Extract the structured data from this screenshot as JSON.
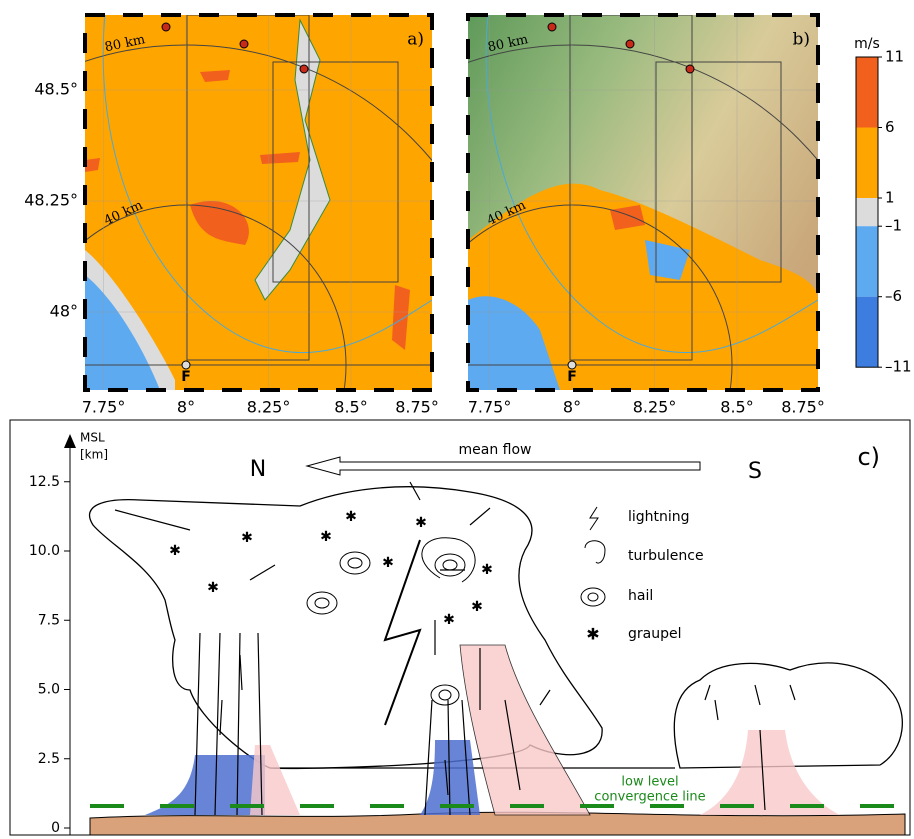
{
  "maps": [
    {
      "label": "a)",
      "ring_labels": [
        "80 km",
        "40 km"
      ],
      "site": "F"
    },
    {
      "label": "b)",
      "ring_labels": [
        "80 km",
        "40 km"
      ],
      "site": "F"
    }
  ],
  "lat_ticks": [
    {
      "value": 48.5,
      "label": "48.5°"
    },
    {
      "value": 48.25,
      "label": "48.25°"
    },
    {
      "value": 48,
      "label": "48°"
    }
  ],
  "lon_ticks": [
    {
      "value": 7.75,
      "label": "7.75°"
    },
    {
      "value": 8,
      "label": "8°"
    },
    {
      "value": 8.25,
      "label": "8.25°"
    },
    {
      "value": 8.5,
      "label": "8.5°"
    },
    {
      "value": 8.75,
      "label": "8.75°"
    }
  ],
  "colorbar": {
    "unit": "m/s",
    "ticks": [
      11,
      6,
      1,
      {
        "value": -1,
        "label": "–1"
      },
      {
        "value": -6,
        "label": "–6"
      },
      {
        "value": -11,
        "label": "–11"
      }
    ],
    "colors": [
      "#f2601e",
      "#ffa500",
      "#dcdcdc",
      "#5eaaf0",
      "#3d7de0"
    ]
  },
  "schematic": {
    "label": "c)",
    "axis_label": [
      "MSL",
      "[km]"
    ],
    "yticks": [
      0,
      2.5,
      {
        "value": 5,
        "label": "5.0"
      },
      7.5,
      {
        "value": 10,
        "label": "10.0"
      },
      12.5
    ],
    "north": "N",
    "south": "S",
    "flow": "mean flow",
    "legend": [
      "lightning",
      "turbulence",
      "hail",
      "graupel"
    ],
    "convergence": [
      "low level",
      "convergence line"
    ]
  }
}
